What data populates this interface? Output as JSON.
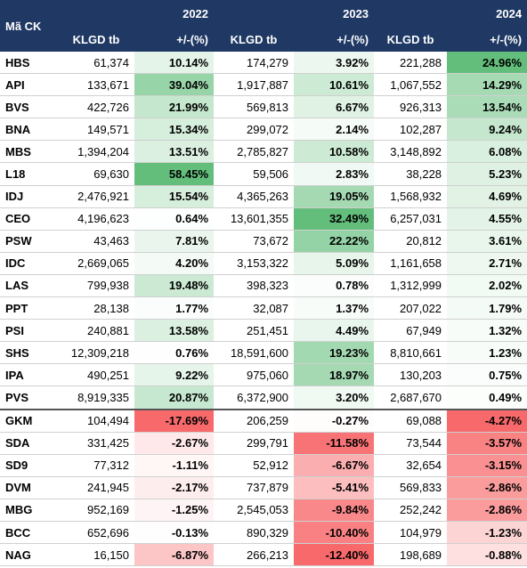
{
  "header": {
    "corner": "Mã CK",
    "years": [
      "2022",
      "2023",
      "2024"
    ],
    "columns": [
      "KLGD tb",
      "+/-(%)",
      "KLGD tb",
      "+/-(%)",
      "KLGD tb",
      "+/-(%)"
    ]
  },
  "table": {
    "rows": [
      [
        "HBS",
        "61,374",
        "10.14%",
        "174,279",
        "3.92%",
        "221,288",
        "24.96%"
      ],
      [
        "API",
        "133,671",
        "39.04%",
        "1,917,887",
        "10.61%",
        "1,067,552",
        "14.29%"
      ],
      [
        "BVS",
        "422,726",
        "21.99%",
        "569,813",
        "6.67%",
        "926,313",
        "13.54%"
      ],
      [
        "BNA",
        "149,571",
        "15.34%",
        "299,072",
        "2.14%",
        "102,287",
        "9.24%"
      ],
      [
        "MBS",
        "1,394,204",
        "13.51%",
        "2,785,827",
        "10.58%",
        "3,148,892",
        "6.08%"
      ],
      [
        "L18",
        "69,630",
        "58.45%",
        "59,506",
        "2.83%",
        "38,228",
        "5.23%"
      ],
      [
        "IDJ",
        "2,476,921",
        "15.54%",
        "4,365,263",
        "19.05%",
        "1,568,932",
        "4.69%"
      ],
      [
        "CEO",
        "4,196,623",
        "0.64%",
        "13,601,355",
        "32.49%",
        "6,257,031",
        "4.55%"
      ],
      [
        "PSW",
        "43,463",
        "7.81%",
        "73,672",
        "22.22%",
        "20,812",
        "3.61%"
      ],
      [
        "IDC",
        "2,669,065",
        "4.20%",
        "3,153,322",
        "5.09%",
        "1,161,658",
        "2.71%"
      ],
      [
        "LAS",
        "799,938",
        "19.48%",
        "398,323",
        "0.78%",
        "1,312,999",
        "2.02%"
      ],
      [
        "PPT",
        "28,138",
        "1.77%",
        "32,087",
        "1.37%",
        "207,022",
        "1.79%"
      ],
      [
        "PSI",
        "240,881",
        "13.58%",
        "251,451",
        "4.49%",
        "67,949",
        "1.32%"
      ],
      [
        "SHS",
        "12,309,218",
        "0.76%",
        "18,591,600",
        "19.23%",
        "8,810,661",
        "1.23%"
      ],
      [
        "IPA",
        "490,251",
        "9.22%",
        "975,060",
        "18.97%",
        "130,203",
        "0.75%"
      ],
      [
        "PVS",
        "8,919,335",
        "20.87%",
        "6,372,900",
        "3.20%",
        "2,687,670",
        "0.49%"
      ],
      [
        "GKM",
        "104,494",
        "-17.69%",
        "206,259",
        "-0.27%",
        "69,088",
        "-4.27%"
      ],
      [
        "SDA",
        "331,425",
        "-2.67%",
        "299,791",
        "-11.58%",
        "73,544",
        "-3.57%"
      ],
      [
        "SD9",
        "77,312",
        "-1.11%",
        "52,912",
        "-6.67%",
        "32,654",
        "-3.15%"
      ],
      [
        "DVM",
        "241,945",
        "-2.17%",
        "737,879",
        "-5.41%",
        "569,833",
        "-2.86%"
      ],
      [
        "MBG",
        "952,169",
        "-1.25%",
        "2,545,053",
        "-9.84%",
        "252,242",
        "-2.86%"
      ],
      [
        "BCC",
        "652,696",
        "-0.13%",
        "890,329",
        "-10.40%",
        "104,979",
        "-1.23%"
      ],
      [
        "NAG",
        "16,150",
        "-6.87%",
        "266,213",
        "-12.40%",
        "198,689",
        "-0.88%"
      ]
    ]
  }
}
